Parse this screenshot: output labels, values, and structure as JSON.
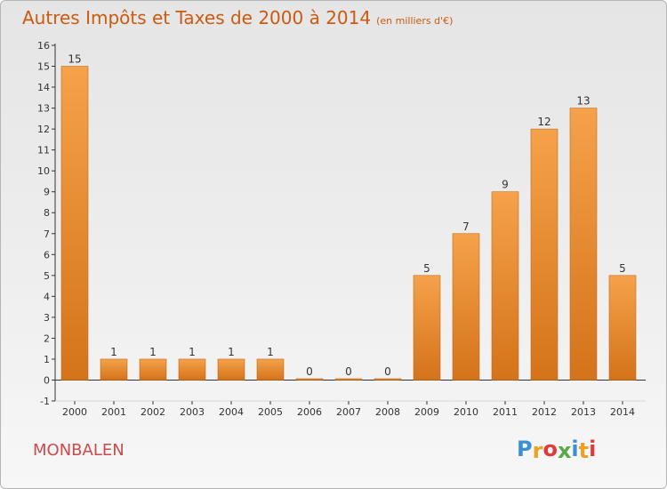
{
  "chart_data": {
    "type": "bar",
    "title": "Autres Impôts et Taxes de 2000 à 2014",
    "subtitle": "(en milliers d'€)",
    "xlabel": "",
    "ylabel": "",
    "categories": [
      "2000",
      "2001",
      "2002",
      "2003",
      "2004",
      "2005",
      "2006",
      "2007",
      "2008",
      "2009",
      "2010",
      "2011",
      "2012",
      "2013",
      "2014"
    ],
    "values": [
      15,
      1,
      1,
      1,
      1,
      1,
      0,
      0,
      0,
      5,
      7,
      9,
      12,
      13,
      5
    ],
    "data_labels": [
      "15",
      "1",
      "1",
      "1",
      "1",
      "1",
      "0",
      "0",
      "0",
      "5",
      "7",
      "9",
      "12",
      "13",
      "5"
    ],
    "ylim": [
      -1,
      16
    ],
    "yticks": [
      "-1",
      "0",
      "1",
      "2",
      "3",
      "4",
      "5",
      "6",
      "7",
      "8",
      "9",
      "10",
      "11",
      "12",
      "13",
      "14",
      "15",
      "16"
    ],
    "grid": false,
    "bar_color": "#f5a24a",
    "bar_color_dark": "#d4731a"
  },
  "footer": {
    "commune": "MONBALEN",
    "logo_letters": [
      "P",
      "r",
      "o",
      "x",
      "i",
      "t",
      "i"
    ],
    "logo_colors": [
      "#3a8fd6",
      "#f0a020",
      "#e03a3a",
      "#5aa84a",
      "#3a8fd6",
      "#f0a020",
      "#e03a3a"
    ]
  }
}
